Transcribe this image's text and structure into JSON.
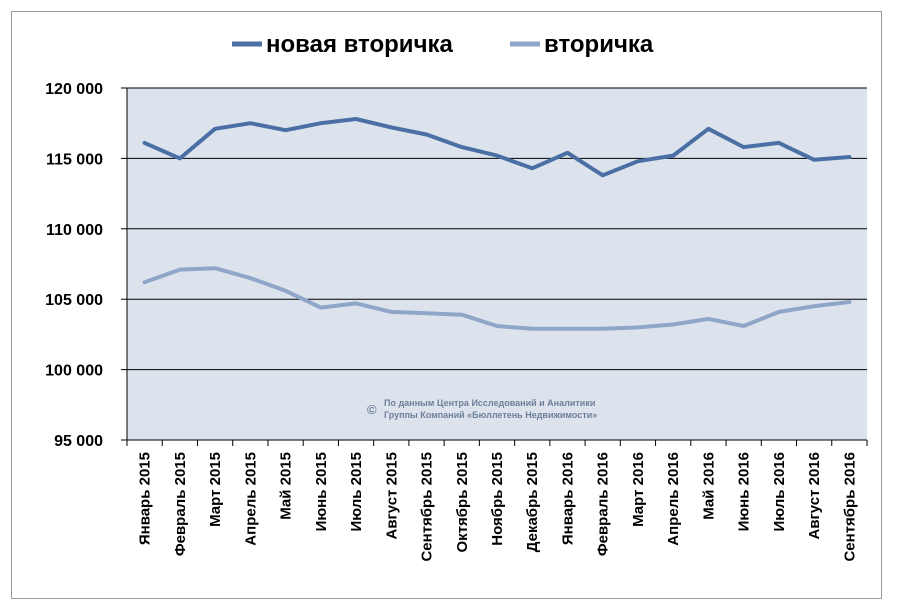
{
  "chart_data": {
    "type": "line",
    "categories": [
      "Январь 2015",
      "Февраль 2015",
      "Март 2015",
      "Апрель 2015",
      "Май 2015",
      "Июнь 2015",
      "Июль 2015",
      "Август 2015",
      "Сентябрь 2015",
      "Октябрь 2015",
      "Ноябрь 2015",
      "Декабрь 2015",
      "Январь 2016",
      "Февраль 2016",
      "Март 2016",
      "Апрель 2016",
      "Май 2016",
      "Июнь 2016",
      "Июль 2016",
      "Август 2016",
      "Сентябрь 2016"
    ],
    "series": [
      {
        "name": "новая вторичка",
        "color": "#4a6fa5",
        "values": [
          116100,
          115000,
          117100,
          117500,
          117000,
          117500,
          117800,
          117200,
          116700,
          115800,
          115200,
          114300,
          115400,
          113800,
          114800,
          115200,
          117100,
          115800,
          116100,
          114900,
          115100
        ]
      },
      {
        "name": "вторичка",
        "color": "#8fa6c9",
        "values": [
          106200,
          107100,
          107200,
          106500,
          105600,
          104400,
          104700,
          104100,
          104000,
          103900,
          103100,
          102900,
          102900,
          102900,
          103000,
          103200,
          103600,
          103100,
          104100,
          104500,
          104800
        ]
      }
    ],
    "ylim": [
      95000,
      120000
    ],
    "yticks": [
      "95 000",
      "100 000",
      "105 000",
      "110 000",
      "115 000",
      "120 000"
    ],
    "ytick_values": [
      95000,
      100000,
      105000,
      110000,
      115000,
      120000
    ],
    "grid": true,
    "legend_position": "top",
    "plot_background": "#dce3ec",
    "watermark": {
      "symbol": "©",
      "line1": "По данным Центра Исследований и Аналитики",
      "line2": "Группы Компаний «Бюллетень Недвижимости»"
    }
  }
}
